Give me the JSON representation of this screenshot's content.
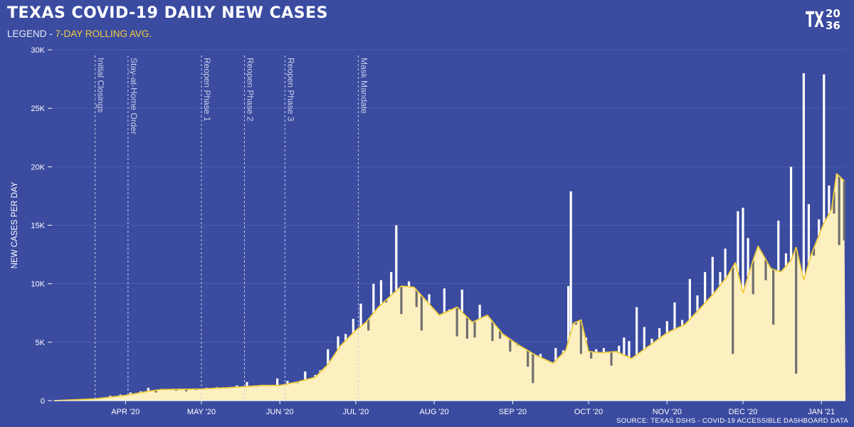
{
  "header": {
    "title": "TEXAS COVID-19 DAILY NEW CASES",
    "legend_prefix": "LEGEND - ",
    "legend_item": "7-DAY ROLLING AVG.",
    "logo_text_left": "TX",
    "logo_text_top": "20",
    "logo_text_bottom": "36"
  },
  "source": "SOURCE: TEXAS DSHS - COVID-19 ACCESSIBLE DASHBOARD DATA",
  "colors": {
    "background": "#3a4ba0",
    "bar_fill": "#fdf0c0",
    "bar_above_avg": "#ffffff",
    "bar_below_avg": "#6f6f6f",
    "rolling_avg": "#f2cd3c",
    "annotation": "#c8cee6"
  },
  "chart_data": {
    "type": "bar",
    "title": "TEXAS COVID-19 DAILY NEW CASES",
    "ylabel": "NEW CASES PER DAY",
    "xlabel": "",
    "ylim": [
      0,
      30000
    ],
    "yticks": [
      0,
      5000,
      10000,
      15000,
      20000,
      25000,
      30000
    ],
    "ytick_labels": [
      "0",
      "5K",
      "10K",
      "15K",
      "20K",
      "25K",
      "30K"
    ],
    "x_start_date": "2020-03-04",
    "x_end_date": "2021-01-10",
    "xticks": [
      "2020-04-01",
      "2020-05-01",
      "2020-06-01",
      "2020-07-01",
      "2020-08-01",
      "2020-09-01",
      "2020-10-01",
      "2020-11-01",
      "2020-12-01",
      "2021-01-01"
    ],
    "xtick_labels": [
      "APR '20",
      "MAY '20",
      "JUN '20",
      "JUL '20",
      "AUG '20",
      "SEP '20",
      "OCT '20",
      "NOV '20",
      "DEC '20",
      "JAN '21"
    ],
    "grid": true,
    "legend": "top-left",
    "annotations": [
      {
        "date": "2020-03-20",
        "label": "Initial Closings"
      },
      {
        "date": "2020-04-02",
        "label": "Stay-at-Home Order"
      },
      {
        "date": "2020-05-01",
        "label": "Reopen Phase 1"
      },
      {
        "date": "2020-05-18",
        "label": "Reopen Phase 2"
      },
      {
        "date": "2020-06-03",
        "label": "Reopen Phase 3"
      },
      {
        "date": "2020-07-02",
        "label": "Mask Mandate"
      }
    ],
    "series": [
      {
        "name": "Daily new cases",
        "kind": "bar",
        "points": [
          [
            "2020-03-10",
            20
          ],
          [
            "2020-03-14",
            50
          ],
          [
            "2020-03-18",
            120
          ],
          [
            "2020-03-22",
            250
          ],
          [
            "2020-03-26",
            420
          ],
          [
            "2020-03-30",
            520
          ],
          [
            "2020-04-03",
            700
          ],
          [
            "2020-04-07",
            800
          ],
          [
            "2020-04-10",
            1100
          ],
          [
            "2020-04-13",
            700
          ],
          [
            "2020-04-17",
            950
          ],
          [
            "2020-04-21",
            850
          ],
          [
            "2020-04-25",
            800
          ],
          [
            "2020-04-29",
            900
          ],
          [
            "2020-05-03",
            1100
          ],
          [
            "2020-05-07",
            1150
          ],
          [
            "2020-05-11",
            1050
          ],
          [
            "2020-05-15",
            1300
          ],
          [
            "2020-05-19",
            1600
          ],
          [
            "2020-05-23",
            1200
          ],
          [
            "2020-05-27",
            1300
          ],
          [
            "2020-05-31",
            1900
          ],
          [
            "2020-06-04",
            1700
          ],
          [
            "2020-06-08",
            1500
          ],
          [
            "2020-06-11",
            2500
          ],
          [
            "2020-06-15",
            2200
          ],
          [
            "2020-06-17",
            2600
          ],
          [
            "2020-06-20",
            4400
          ],
          [
            "2020-06-24",
            5500
          ],
          [
            "2020-06-27",
            5700
          ],
          [
            "2020-06-30",
            7000
          ],
          [
            "2020-07-03",
            8300
          ],
          [
            "2020-07-06",
            6000
          ],
          [
            "2020-07-08",
            10000
          ],
          [
            "2020-07-11",
            10300
          ],
          [
            "2020-07-13",
            8400
          ],
          [
            "2020-07-15",
            11000
          ],
          [
            "2020-07-17",
            15000
          ],
          [
            "2020-07-19",
            7400
          ],
          [
            "2020-07-22",
            10200
          ],
          [
            "2020-07-25",
            8000
          ],
          [
            "2020-07-27",
            6000
          ],
          [
            "2020-07-30",
            9100
          ],
          [
            "2020-08-03",
            7300
          ],
          [
            "2020-08-05",
            9600
          ],
          [
            "2020-08-07",
            7800
          ],
          [
            "2020-08-10",
            5500
          ],
          [
            "2020-08-12",
            9500
          ],
          [
            "2020-08-14",
            5300
          ],
          [
            "2020-08-17",
            5400
          ],
          [
            "2020-08-19",
            8200
          ],
          [
            "2020-08-22",
            7200
          ],
          [
            "2020-08-24",
            5100
          ],
          [
            "2020-08-27",
            5300
          ],
          [
            "2020-08-31",
            4200
          ],
          [
            "2020-09-03",
            4700
          ],
          [
            "2020-09-07",
            2900
          ],
          [
            "2020-09-09",
            1500
          ],
          [
            "2020-09-12",
            4000
          ],
          [
            "2020-09-15",
            3400
          ],
          [
            "2020-09-18",
            4500
          ],
          [
            "2020-09-21",
            4300
          ],
          [
            "2020-09-23",
            9800
          ],
          [
            "2020-09-24",
            17900
          ],
          [
            "2020-09-26",
            6500
          ],
          [
            "2020-09-28",
            4000
          ],
          [
            "2020-09-30",
            5400
          ],
          [
            "2020-10-02",
            3600
          ],
          [
            "2020-10-04",
            4400
          ],
          [
            "2020-10-07",
            4500
          ],
          [
            "2020-10-10",
            3000
          ],
          [
            "2020-10-13",
            4700
          ],
          [
            "2020-10-15",
            5400
          ],
          [
            "2020-10-17",
            5100
          ],
          [
            "2020-10-20",
            8000
          ],
          [
            "2020-10-23",
            6300
          ],
          [
            "2020-10-26",
            5300
          ],
          [
            "2020-10-29",
            6200
          ],
          [
            "2020-11-01",
            6800
          ],
          [
            "2020-11-04",
            8400
          ],
          [
            "2020-11-07",
            6900
          ],
          [
            "2020-11-10",
            10400
          ],
          [
            "2020-11-13",
            9000
          ],
          [
            "2020-11-16",
            11000
          ],
          [
            "2020-11-19",
            12300
          ],
          [
            "2020-11-22",
            11000
          ],
          [
            "2020-11-24",
            13000
          ],
          [
            "2020-11-27",
            4000
          ],
          [
            "2020-11-29",
            16200
          ],
          [
            "2020-12-01",
            16500
          ],
          [
            "2020-12-03",
            13900
          ],
          [
            "2020-12-05",
            9100
          ],
          [
            "2020-12-08",
            12800
          ],
          [
            "2020-12-10",
            10300
          ],
          [
            "2020-12-13",
            6500
          ],
          [
            "2020-12-15",
            15400
          ],
          [
            "2020-12-18",
            12600
          ],
          [
            "2020-12-20",
            20000
          ],
          [
            "2020-12-22",
            2300
          ],
          [
            "2020-12-25",
            28000
          ],
          [
            "2020-12-27",
            16800
          ],
          [
            "2020-12-29",
            12400
          ],
          [
            "2020-12-31",
            15500
          ],
          [
            "2021-01-02",
            27900
          ],
          [
            "2021-01-04",
            18400
          ],
          [
            "2021-01-06",
            16000
          ],
          [
            "2021-01-08",
            13300
          ],
          [
            "2021-01-10",
            13700
          ]
        ]
      },
      {
        "name": "7-DAY ROLLING AVG.",
        "kind": "line",
        "points": [
          [
            "2020-03-04",
            0
          ],
          [
            "2020-03-20",
            150
          ],
          [
            "2020-04-01",
            450
          ],
          [
            "2020-04-10",
            800
          ],
          [
            "2020-04-15",
            950
          ],
          [
            "2020-05-01",
            1000
          ],
          [
            "2020-05-15",
            1150
          ],
          [
            "2020-05-25",
            1300
          ],
          [
            "2020-06-01",
            1300
          ],
          [
            "2020-06-08",
            1600
          ],
          [
            "2020-06-15",
            2000
          ],
          [
            "2020-06-20",
            3100
          ],
          [
            "2020-06-25",
            4700
          ],
          [
            "2020-07-01",
            6000
          ],
          [
            "2020-07-05",
            6700
          ],
          [
            "2020-07-10",
            8000
          ],
          [
            "2020-07-15",
            9000
          ],
          [
            "2020-07-19",
            9800
          ],
          [
            "2020-07-24",
            9700
          ],
          [
            "2020-07-29",
            8500
          ],
          [
            "2020-08-03",
            7300
          ],
          [
            "2020-08-10",
            8000
          ],
          [
            "2020-08-16",
            6700
          ],
          [
            "2020-08-22",
            7300
          ],
          [
            "2020-08-28",
            5700
          ],
          [
            "2020-09-03",
            4800
          ],
          [
            "2020-09-10",
            3900
          ],
          [
            "2020-09-17",
            3200
          ],
          [
            "2020-09-22",
            4300
          ],
          [
            "2020-09-25",
            6600
          ],
          [
            "2020-09-28",
            6900
          ],
          [
            "2020-10-01",
            4200
          ],
          [
            "2020-10-06",
            4100
          ],
          [
            "2020-10-12",
            4200
          ],
          [
            "2020-10-18",
            3600
          ],
          [
            "2020-10-25",
            4700
          ],
          [
            "2020-11-01",
            5800
          ],
          [
            "2020-11-08",
            6500
          ],
          [
            "2020-11-15",
            8100
          ],
          [
            "2020-11-20",
            9300
          ],
          [
            "2020-11-25",
            10700
          ],
          [
            "2020-11-28",
            11800
          ],
          [
            "2020-12-01",
            9200
          ],
          [
            "2020-12-05",
            12000
          ],
          [
            "2020-12-07",
            13200
          ],
          [
            "2020-12-12",
            11300
          ],
          [
            "2020-12-16",
            11000
          ],
          [
            "2020-12-20",
            12000
          ],
          [
            "2020-12-22",
            13100
          ],
          [
            "2020-12-25",
            10300
          ],
          [
            "2020-12-28",
            12500
          ],
          [
            "2021-01-02",
            15200
          ],
          [
            "2021-01-05",
            16300
          ],
          [
            "2021-01-07",
            19400
          ],
          [
            "2021-01-10",
            18800
          ]
        ]
      }
    ]
  }
}
